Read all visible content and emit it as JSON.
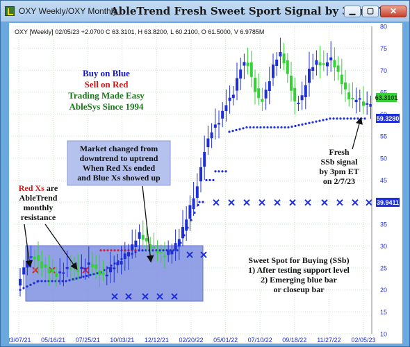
{
  "window": {
    "title": "OXY Weekly/OXY Monthly",
    "chart_title": "AbleTrend Fresh Sweet Sport Signal by 3pm ET",
    "minimize_glyph": "▁",
    "maximize_glyph": "▢",
    "close_glyph": "✕"
  },
  "info_line": "OXY [Weekly] 02/05/23 +2.0700 C 63.3101, H 63.8200, L 60.2100, O 61.5000, V 6.9785M",
  "legend": {
    "line1": "Buy on Blue",
    "line2": "Sell on Red",
    "line3": "Trading Made Easy",
    "line4": "AbleSys Since 1994",
    "color_blue": "#1414c8",
    "color_red": "#d01818",
    "color_green": "#1a7a1a"
  },
  "annotations": {
    "market_changed": [
      "Market changed from",
      "downtrend to uptrend",
      "When Red Xs ended",
      "and Blue Xs showed up"
    ],
    "red_xs": [
      "Red Xs",
      " are",
      "AbleTrend",
      "monthly",
      "resistance"
    ],
    "fresh_signal": [
      "Fresh",
      "SSb signal",
      "by 3pm ET",
      "on 2/7/23"
    ],
    "sweet_spot": [
      "Sweet Spot for Buying (SSb)",
      "1) After testing support level",
      "2) Emerging blue bar",
      "or closeup bar"
    ]
  },
  "price_tags": {
    "last_close": "63.3101",
    "support": "59.3280",
    "resistance": "39.9411"
  },
  "chart_data": {
    "type": "candlestick",
    "y_ticks": [
      10,
      15,
      20,
      25,
      30,
      35,
      40,
      45,
      50,
      55,
      60,
      65,
      70,
      75,
      80
    ],
    "ylim": [
      10,
      80
    ],
    "x_ticks": [
      "03/07/21",
      "05/16/21",
      "07/25/21",
      "10/03/21",
      "12/12/21",
      "02/20/22",
      "05/01/22",
      "07/10/22",
      "09/18/22",
      "11/27/22",
      "02/05/23"
    ],
    "grid": true,
    "colors": {
      "blue": "#1e2fd8",
      "green": "#38d038",
      "red": "#d82040",
      "highlight": "#7f8fe0"
    }
  }
}
